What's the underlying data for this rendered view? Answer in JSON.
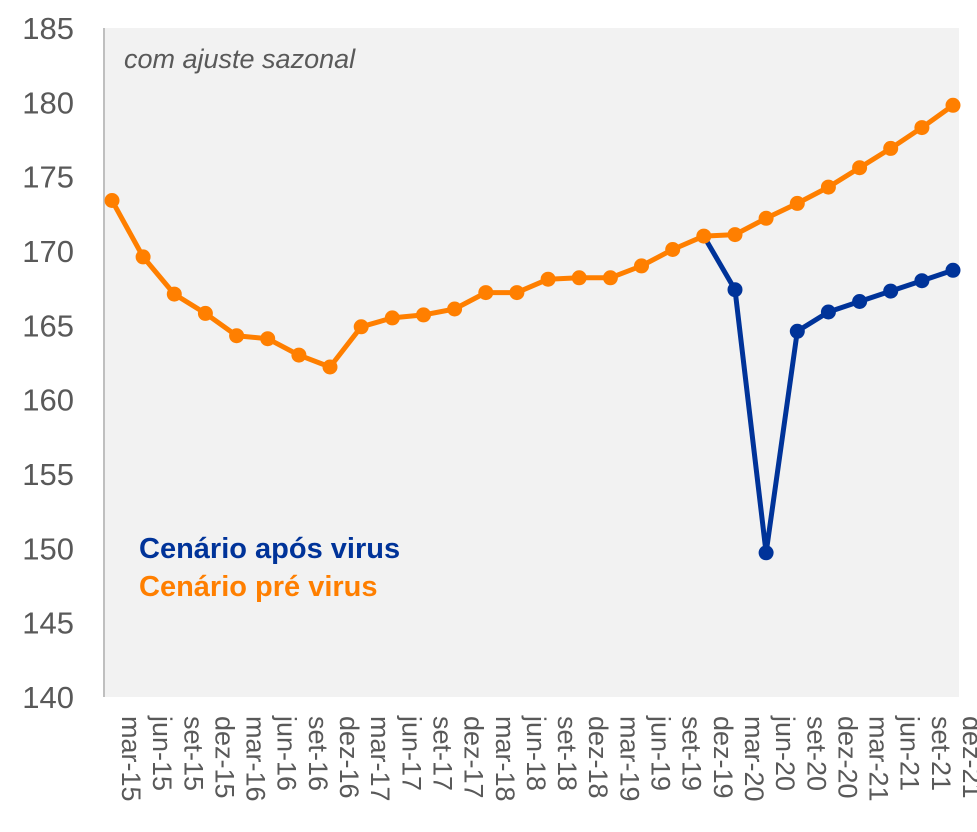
{
  "chart_data": {
    "type": "line",
    "annotation": "com ajuste sazonal",
    "categories": [
      "mar-15",
      "jun-15",
      "set-15",
      "dez-15",
      "mar-16",
      "jun-16",
      "set-16",
      "dez-16",
      "mar-17",
      "jun-17",
      "set-17",
      "dez-17",
      "mar-18",
      "jun-18",
      "set-18",
      "dez-18",
      "mar-19",
      "jun-19",
      "set-19",
      "dez-19",
      "mar-20",
      "jun-20",
      "set-20",
      "dez-20",
      "mar-21",
      "jun-21",
      "set-21",
      "dez-21"
    ],
    "ylim": [
      140,
      185
    ],
    "yticks": [
      140,
      145,
      150,
      155,
      160,
      165,
      170,
      175,
      180,
      185
    ],
    "grid": false,
    "background": "#f2f2f2",
    "legend_position": "bottom-left",
    "series": [
      {
        "name": "Cenário após virus",
        "color": "#003399",
        "values": [
          null,
          null,
          null,
          null,
          null,
          null,
          null,
          null,
          null,
          null,
          null,
          null,
          null,
          null,
          null,
          null,
          null,
          null,
          null,
          171.0,
          167.4,
          149.7,
          164.6,
          165.9,
          166.6,
          167.3,
          168.0,
          168.7
        ]
      },
      {
        "name": "Cenário pré virus",
        "color": "#ff7f00",
        "values": [
          173.4,
          169.6,
          167.1,
          165.8,
          164.3,
          164.1,
          163.0,
          162.2,
          164.9,
          165.5,
          165.7,
          166.1,
          167.2,
          167.2,
          168.1,
          168.2,
          168.2,
          169.0,
          170.1,
          171.0,
          171.1,
          172.2,
          173.2,
          174.3,
          175.6,
          176.9,
          178.3,
          179.8
        ]
      }
    ]
  }
}
